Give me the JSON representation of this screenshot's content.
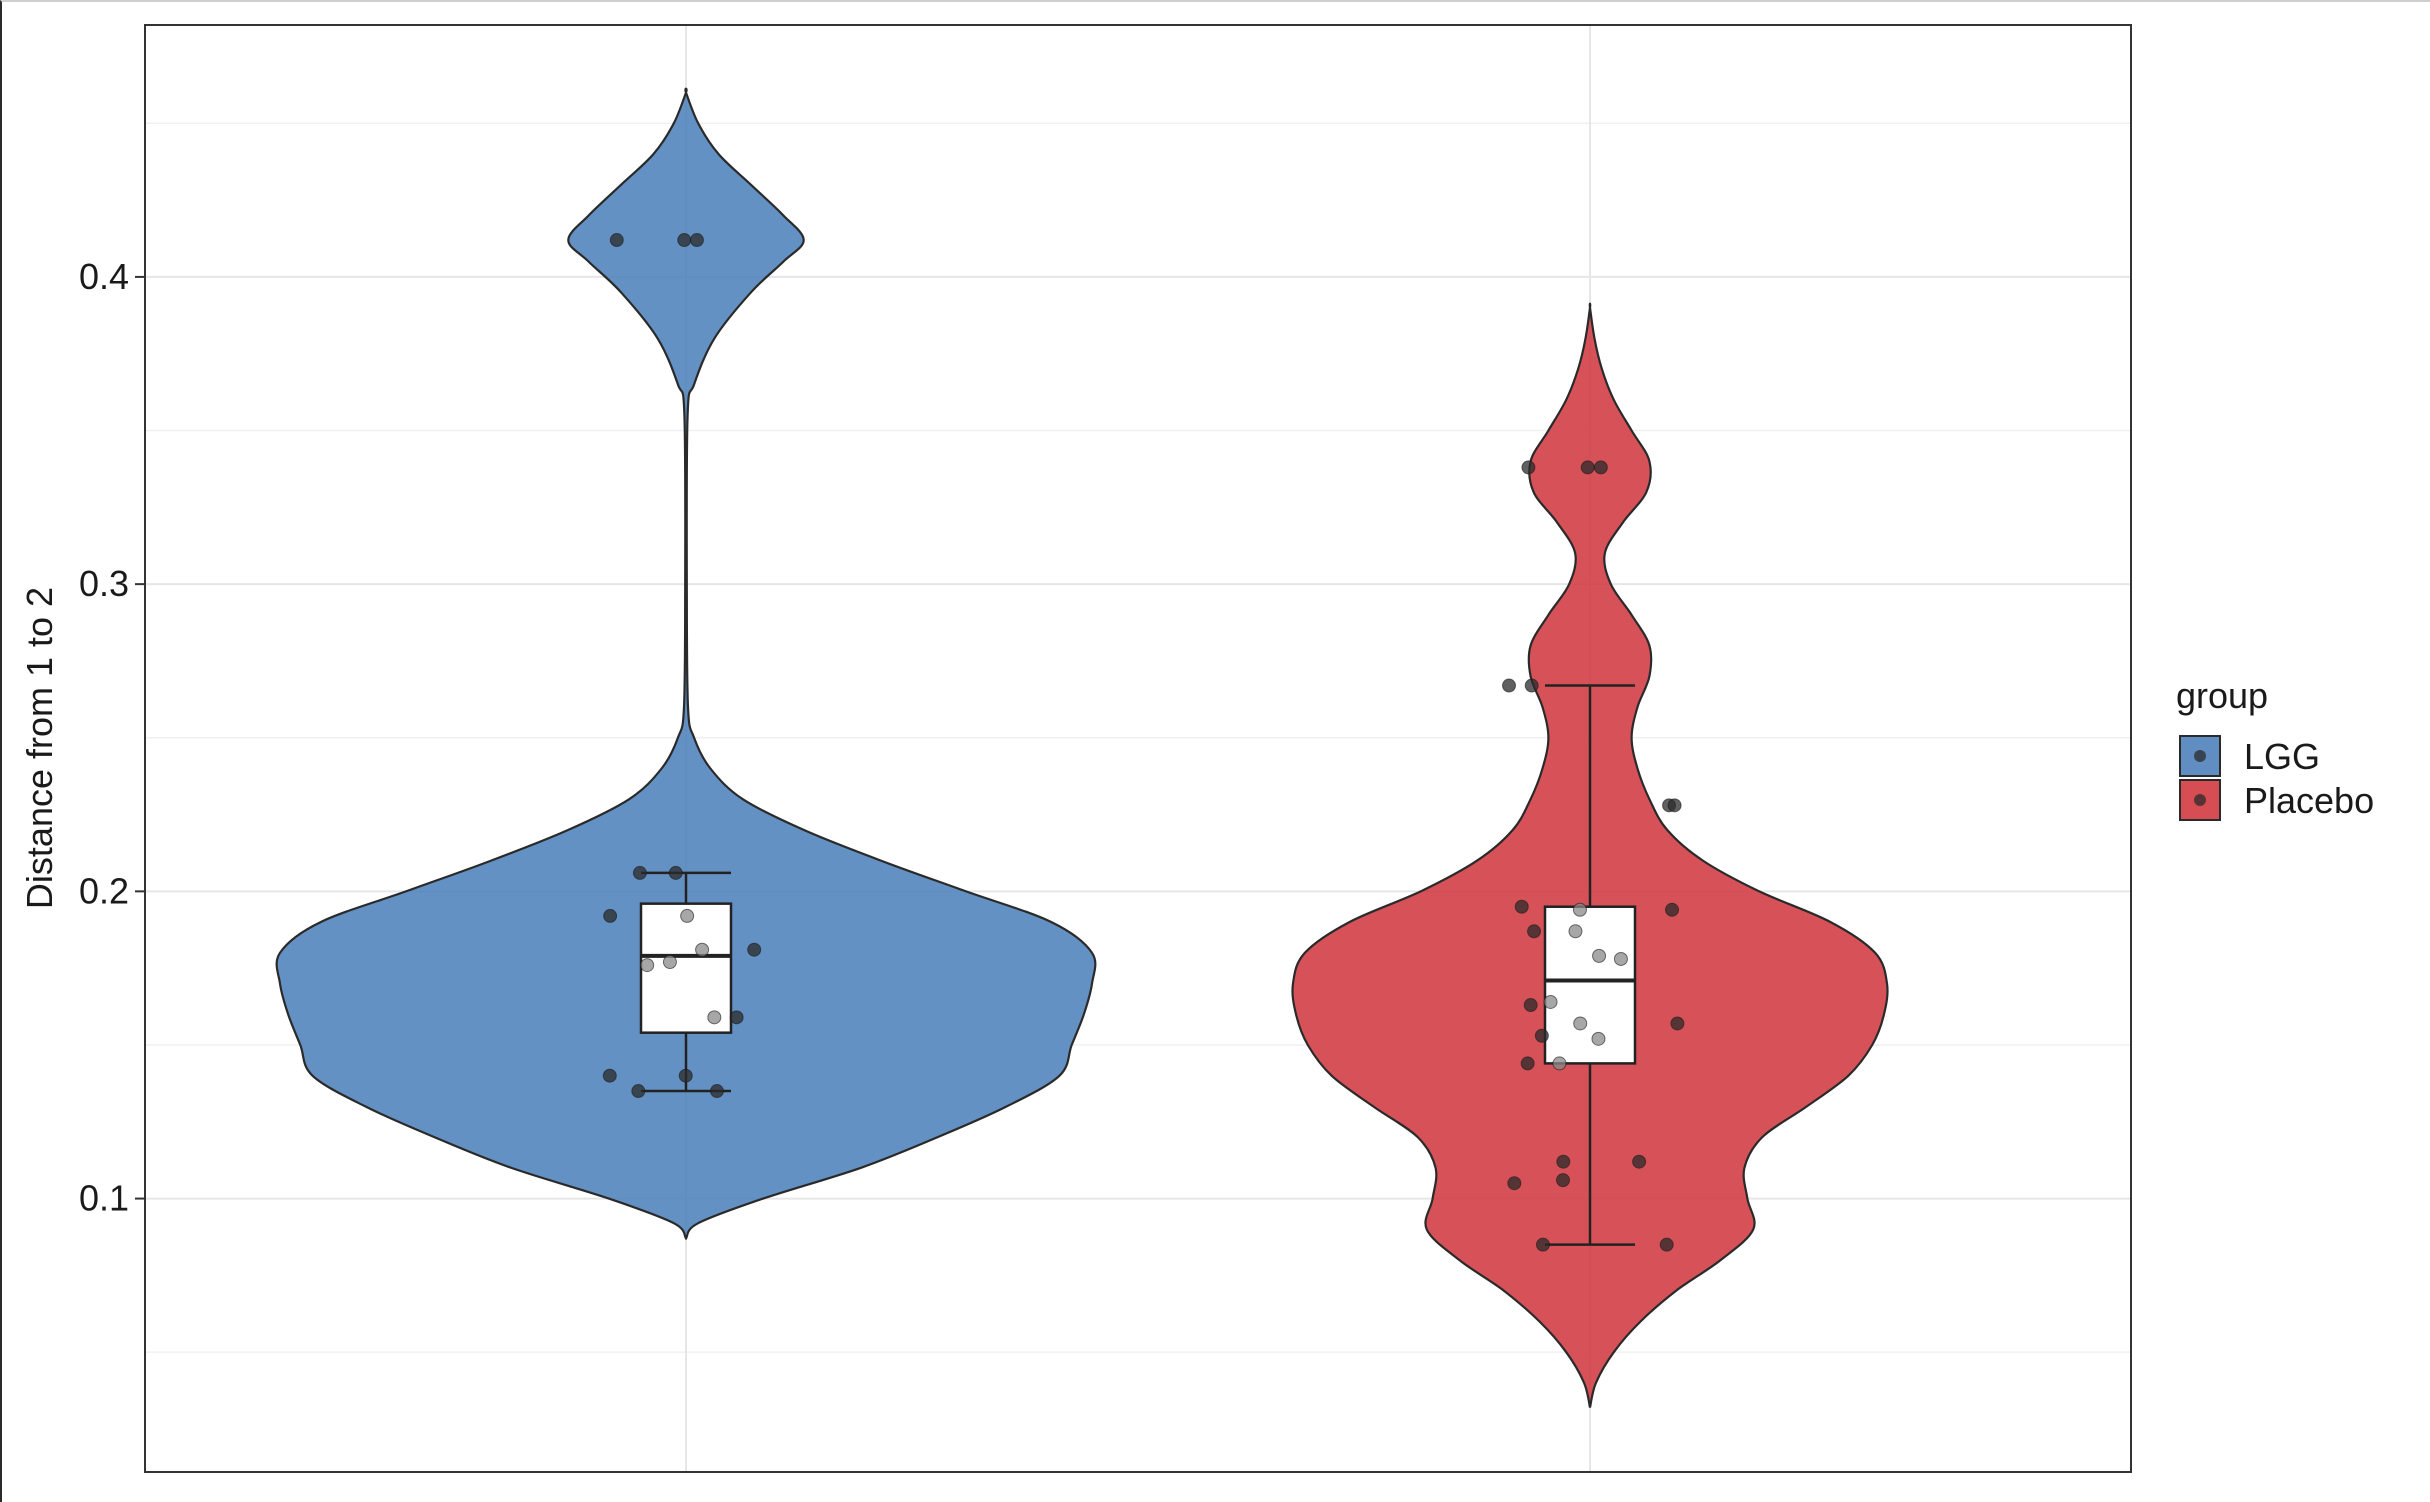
{
  "chart_data": {
    "type": "violin",
    "title": "",
    "xlabel": "",
    "ylabel": "Distance from 1 to 2",
    "ylim": [
      0.011,
      0.482
    ],
    "yticks": [
      0.1,
      0.2,
      0.3,
      0.4
    ],
    "ytick_labels": [
      "0.1",
      "0.2",
      "0.3",
      "0.4"
    ],
    "grid": true,
    "legend": {
      "title": "group",
      "position": "right"
    },
    "colors": {
      "LGG": "#4f82bb",
      "Placebo": "#d23a41",
      "outline": "#2a2a2a",
      "grid": "#e6e6e6"
    },
    "series": [
      {
        "name": "LGG",
        "box": {
          "min": 0.135,
          "q1": 0.154,
          "median": 0.179,
          "q3": 0.196,
          "max": 0.206
        },
        "points": [
          0.412,
          0.412,
          0.412,
          0.206,
          0.206,
          0.192,
          0.192,
          0.181,
          0.181,
          0.177,
          0.176,
          0.159,
          0.159,
          0.14,
          0.14,
          0.135,
          0.135
        ],
        "density": [
          [
            0.087,
            0
          ],
          [
            0.092,
            0.03
          ],
          [
            0.1,
            0.19
          ],
          [
            0.11,
            0.43
          ],
          [
            0.12,
            0.62
          ],
          [
            0.13,
            0.79
          ],
          [
            0.14,
            0.92
          ],
          [
            0.15,
            0.95
          ],
          [
            0.16,
            0.98
          ],
          [
            0.17,
            1.0
          ],
          [
            0.18,
            1.0
          ],
          [
            0.19,
            0.9
          ],
          [
            0.2,
            0.69
          ],
          [
            0.21,
            0.48
          ],
          [
            0.22,
            0.29
          ],
          [
            0.23,
            0.14
          ],
          [
            0.24,
            0.06
          ],
          [
            0.25,
            0.02
          ],
          [
            0.26,
            0.005
          ],
          [
            0.3,
            0.002
          ],
          [
            0.355,
            0.004
          ],
          [
            0.365,
            0.02
          ],
          [
            0.38,
            0.07
          ],
          [
            0.395,
            0.16
          ],
          [
            0.405,
            0.24
          ],
          [
            0.412,
            0.29
          ],
          [
            0.42,
            0.24
          ],
          [
            0.43,
            0.16
          ],
          [
            0.44,
            0.08
          ],
          [
            0.45,
            0.03
          ],
          [
            0.46,
            0
          ]
        ]
      },
      {
        "name": "Placebo",
        "box": {
          "min": 0.085,
          "q1": 0.144,
          "median": 0.171,
          "q3": 0.195,
          "max": 0.267
        },
        "points": [
          0.338,
          0.338,
          0.338,
          0.267,
          0.267,
          0.228,
          0.228,
          0.195,
          0.194,
          0.194,
          0.187,
          0.187,
          0.179,
          0.178,
          0.164,
          0.163,
          0.157,
          0.157,
          0.153,
          0.152,
          0.144,
          0.144,
          0.112,
          0.112,
          0.106,
          0.105,
          0.085,
          0.085
        ],
        "density": [
          [
            0.032,
            0
          ],
          [
            0.04,
            0.02
          ],
          [
            0.05,
            0.08
          ],
          [
            0.06,
            0.17
          ],
          [
            0.07,
            0.29
          ],
          [
            0.08,
            0.44
          ],
          [
            0.09,
            0.55
          ],
          [
            0.1,
            0.53
          ],
          [
            0.11,
            0.52
          ],
          [
            0.12,
            0.58
          ],
          [
            0.13,
            0.73
          ],
          [
            0.14,
            0.87
          ],
          [
            0.15,
            0.95
          ],
          [
            0.16,
            0.99
          ],
          [
            0.17,
            1.0
          ],
          [
            0.18,
            0.96
          ],
          [
            0.19,
            0.81
          ],
          [
            0.2,
            0.57
          ],
          [
            0.21,
            0.38
          ],
          [
            0.22,
            0.26
          ],
          [
            0.23,
            0.2
          ],
          [
            0.24,
            0.16
          ],
          [
            0.25,
            0.14
          ],
          [
            0.26,
            0.16
          ],
          [
            0.27,
            0.2
          ],
          [
            0.28,
            0.2
          ],
          [
            0.29,
            0.14
          ],
          [
            0.3,
            0.07
          ],
          [
            0.31,
            0.05
          ],
          [
            0.32,
            0.11
          ],
          [
            0.33,
            0.19
          ],
          [
            0.34,
            0.2
          ],
          [
            0.35,
            0.14
          ],
          [
            0.36,
            0.08
          ],
          [
            0.37,
            0.04
          ],
          [
            0.38,
            0.015
          ],
          [
            0.39,
            0
          ]
        ]
      }
    ]
  }
}
